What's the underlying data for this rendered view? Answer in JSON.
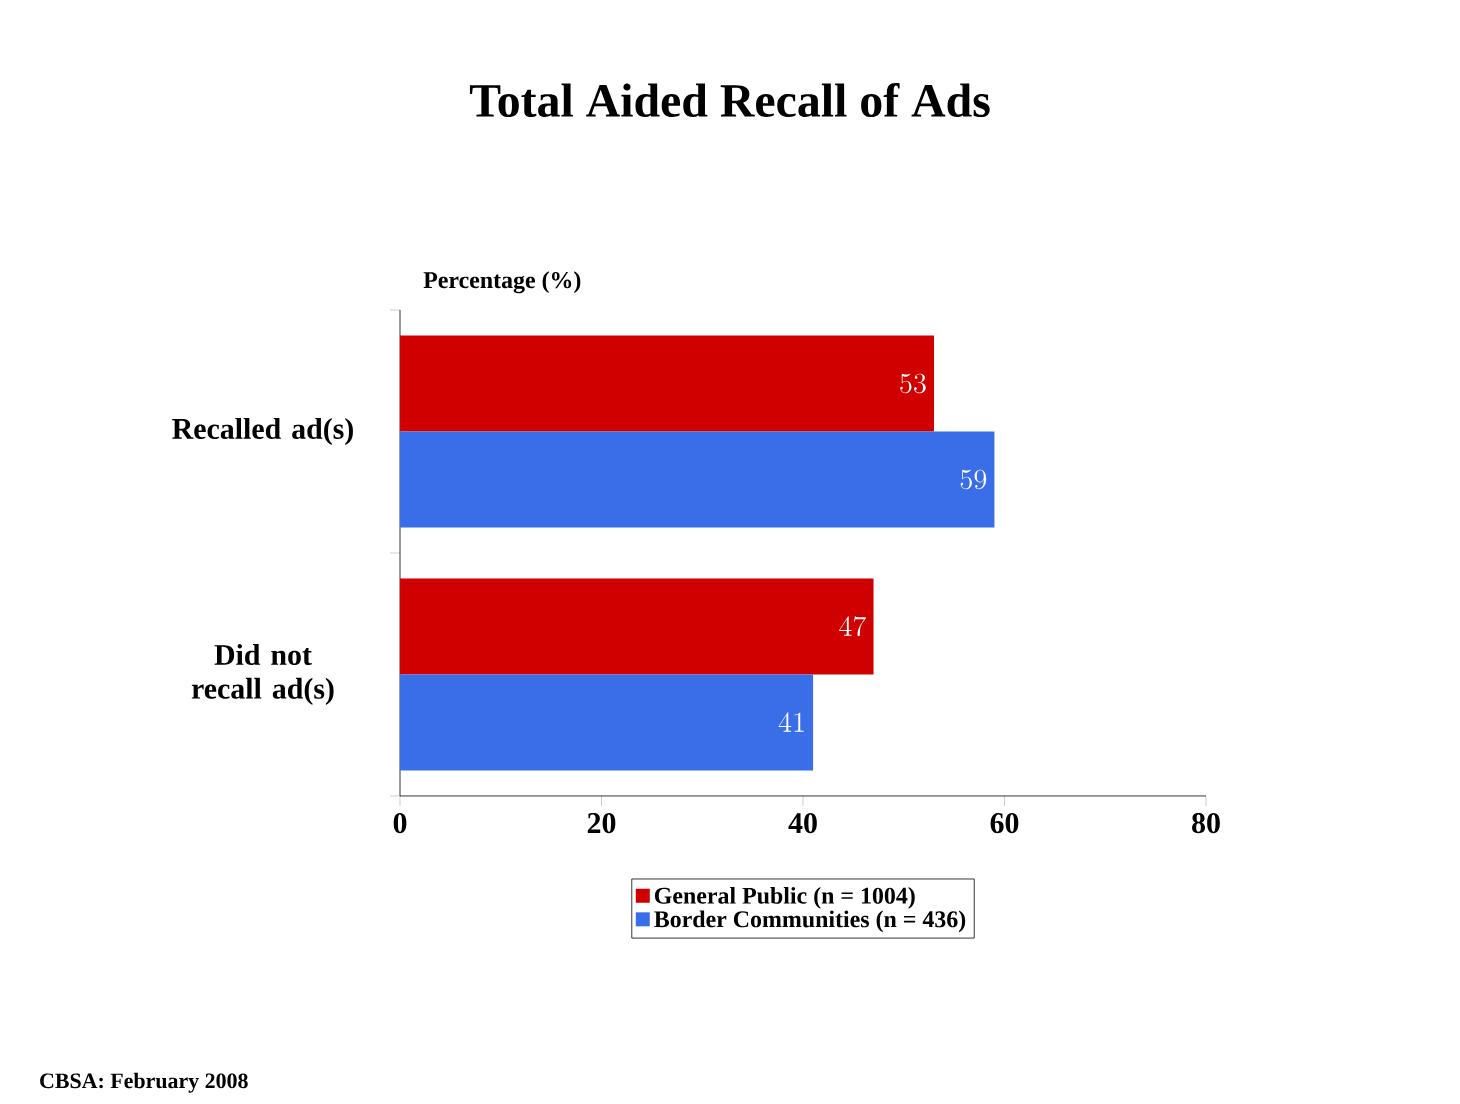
{
  "chart_data": {
    "type": "bar",
    "orientation": "horizontal",
    "title": "Total Aided Recall of Ads",
    "xlabel": "Percentage (%)",
    "categories": [
      "Recalled ad(s)",
      "Did not recall ad(s)"
    ],
    "series": [
      {
        "name": "General Public (n = 1004)",
        "color": "#d10000",
        "values": [
          53,
          47
        ]
      },
      {
        "name": "Border Communities (n = 436)",
        "color": "#3a6ee8",
        "values": [
          59,
          41
        ]
      }
    ],
    "xlim": [
      0,
      80
    ],
    "xticks": [
      0,
      20,
      40,
      60,
      80
    ],
    "data_labels": true,
    "legend": "bottom",
    "grid": false,
    "annotations": [
      "CBSA: February 2008"
    ]
  }
}
